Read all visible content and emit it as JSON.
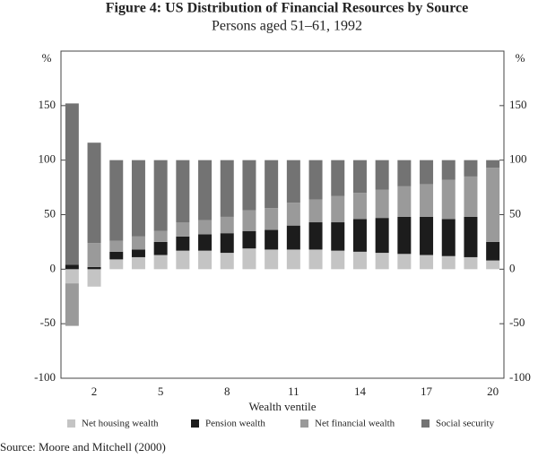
{
  "chart_data": {
    "type": "stacked_bar",
    "title": "Figure 4: US Distribution of Financial Resources by Source",
    "subtitle": "Persons aged 51–61, 1992",
    "xlabel": "Wealth ventile",
    "ylabel": "%",
    "y2label": "%",
    "source": "Source: Moore and Mitchell (2000)",
    "categories": [
      null,
      2,
      null,
      null,
      5,
      null,
      null,
      8,
      null,
      null,
      11,
      null,
      null,
      14,
      null,
      null,
      17,
      null,
      null,
      20
    ],
    "series": [
      {
        "name": "Net housing wealth",
        "color": "#c4c4c4",
        "values": [
          -13,
          -16,
          9,
          11,
          13,
          17,
          17,
          15,
          19,
          18,
          18,
          18,
          17,
          16,
          15,
          14,
          13,
          12,
          11,
          8
        ]
      },
      {
        "name": "Pension wealth",
        "color": "#1c1c1c",
        "values": [
          4,
          2,
          7,
          7,
          12,
          13,
          15,
          18,
          16,
          18,
          22,
          25,
          26,
          30,
          32,
          34,
          35,
          34,
          37,
          17
        ]
      },
      {
        "name": "Net financial wealth",
        "color": "#9a9a9a",
        "values": [
          -39,
          22,
          10,
          12,
          10,
          13,
          13,
          15,
          19,
          20,
          21,
          21,
          24,
          24,
          26,
          28,
          30,
          36,
          37,
          68
        ]
      },
      {
        "name": "Social security",
        "color": "#737373",
        "values": [
          148,
          92,
          74,
          70,
          65,
          57,
          55,
          52,
          46,
          44,
          39,
          36,
          33,
          30,
          27,
          24,
          22,
          18,
          15,
          7
        ]
      }
    ],
    "ylim": [
      -100,
      200
    ],
    "yticks": [
      -100,
      -50,
      0,
      50,
      100,
      150
    ],
    "y2lim": [
      -100,
      200
    ],
    "y2ticks": [
      -100,
      -50,
      0,
      50,
      100,
      150
    ],
    "grid": false
  }
}
